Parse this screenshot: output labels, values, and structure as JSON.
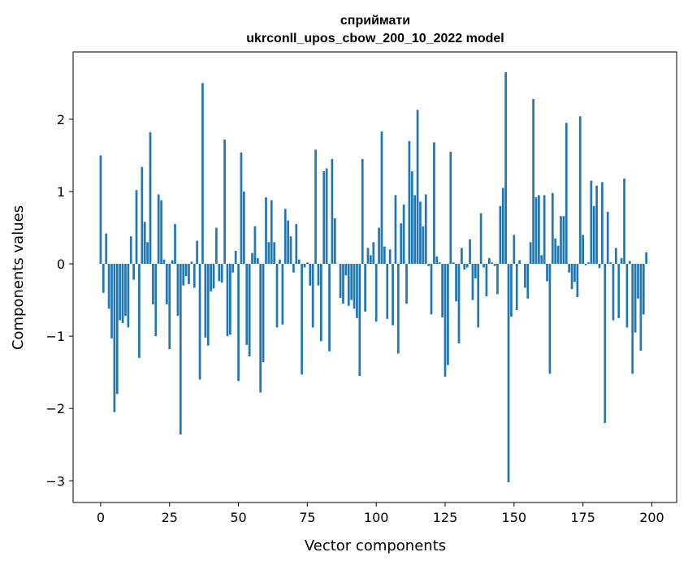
{
  "chart_data": {
    "type": "bar",
    "title_line1": "сприймати",
    "title_line2": "ukrconll_upos_cbow_200_10_2022 model",
    "xlabel": "Vector components",
    "ylabel": "Components values",
    "xlim": [
      -10,
      209
    ],
    "ylim": [
      -3.3,
      2.93
    ],
    "xticks": [
      0,
      25,
      50,
      75,
      100,
      125,
      150,
      175,
      200
    ],
    "yticks": [
      -3,
      -2,
      -1,
      0,
      1,
      2
    ],
    "ytick_labels": [
      "−3",
      "−2",
      "−1",
      "0",
      "1",
      "2"
    ],
    "bar_color": "#1f77b4",
    "grid": false,
    "values": [
      1.5,
      -0.4,
      0.42,
      -0.62,
      -1.03,
      -2.05,
      -1.8,
      -0.78,
      -0.82,
      -0.72,
      -0.88,
      0.38,
      -0.22,
      1.02,
      -1.3,
      1.34,
      0.58,
      0.3,
      1.82,
      -0.56,
      -1.0,
      0.96,
      0.88,
      0.06,
      -0.56,
      -1.18,
      0.05,
      0.55,
      -0.72,
      -2.36,
      -0.3,
      -0.17,
      -0.28,
      0.03,
      -0.33,
      0.32,
      -1.6,
      2.5,
      -1.02,
      -1.13,
      -0.38,
      -0.34,
      0.5,
      -0.24,
      -0.26,
      1.72,
      -1.0,
      -0.98,
      -0.12,
      0.18,
      -1.62,
      1.54,
      1.0,
      -1.12,
      -1.28,
      0.15,
      0.52,
      0.08,
      -1.78,
      -1.36,
      0.92,
      0.3,
      0.88,
      0.3,
      -0.88,
      0.06,
      -0.84,
      0.76,
      0.6,
      0.38,
      -0.12,
      0.55,
      0.06,
      -1.53,
      -0.05,
      0.02,
      -0.3,
      -0.88,
      1.58,
      -0.3,
      -1.07,
      1.28,
      1.32,
      -1.21,
      1.45,
      0.63,
      0.0,
      -0.47,
      -0.55,
      -0.16,
      -0.58,
      -0.5,
      -0.62,
      -0.75,
      -1.55,
      1.45,
      -0.66,
      0.22,
      0.12,
      0.3,
      -0.8,
      0.5,
      1.83,
      0.24,
      -0.76,
      0.2,
      -0.85,
      0.95,
      -1.24,
      0.56,
      0.82,
      -0.55,
      1.7,
      1.28,
      0.95,
      2.13,
      0.86,
      0.52,
      0.96,
      -0.03,
      -0.7,
      1.68,
      0.1,
      0.02,
      -0.74,
      -1.56,
      -1.4,
      1.55,
      0.02,
      -0.52,
      -1.1,
      0.22,
      -0.08,
      -0.05,
      0.34,
      -0.5,
      -0.2,
      -0.88,
      0.7,
      -0.05,
      -0.45,
      0.08,
      0.02,
      -0.03,
      -0.42,
      0.8,
      1.05,
      2.65,
      -3.02,
      -0.73,
      0.4,
      -0.64,
      0.05,
      0.0,
      -0.33,
      -0.48,
      0.3,
      2.28,
      0.92,
      0.95,
      0.12,
      0.95,
      -0.24,
      -1.52,
      0.98,
      0.35,
      0.25,
      0.66,
      0.66,
      1.95,
      -0.12,
      -0.35,
      -0.25,
      -0.46,
      2.04,
      0.4,
      -0.02,
      0.02,
      1.15,
      0.8,
      1.08,
      -0.06,
      1.13,
      -2.2,
      0.72,
      0.02,
      -0.78,
      0.22,
      -0.75,
      0.08,
      1.18,
      -0.88,
      0.04,
      -1.52,
      -0.95,
      -0.48,
      -1.2,
      -0.7,
      0.16
    ]
  }
}
